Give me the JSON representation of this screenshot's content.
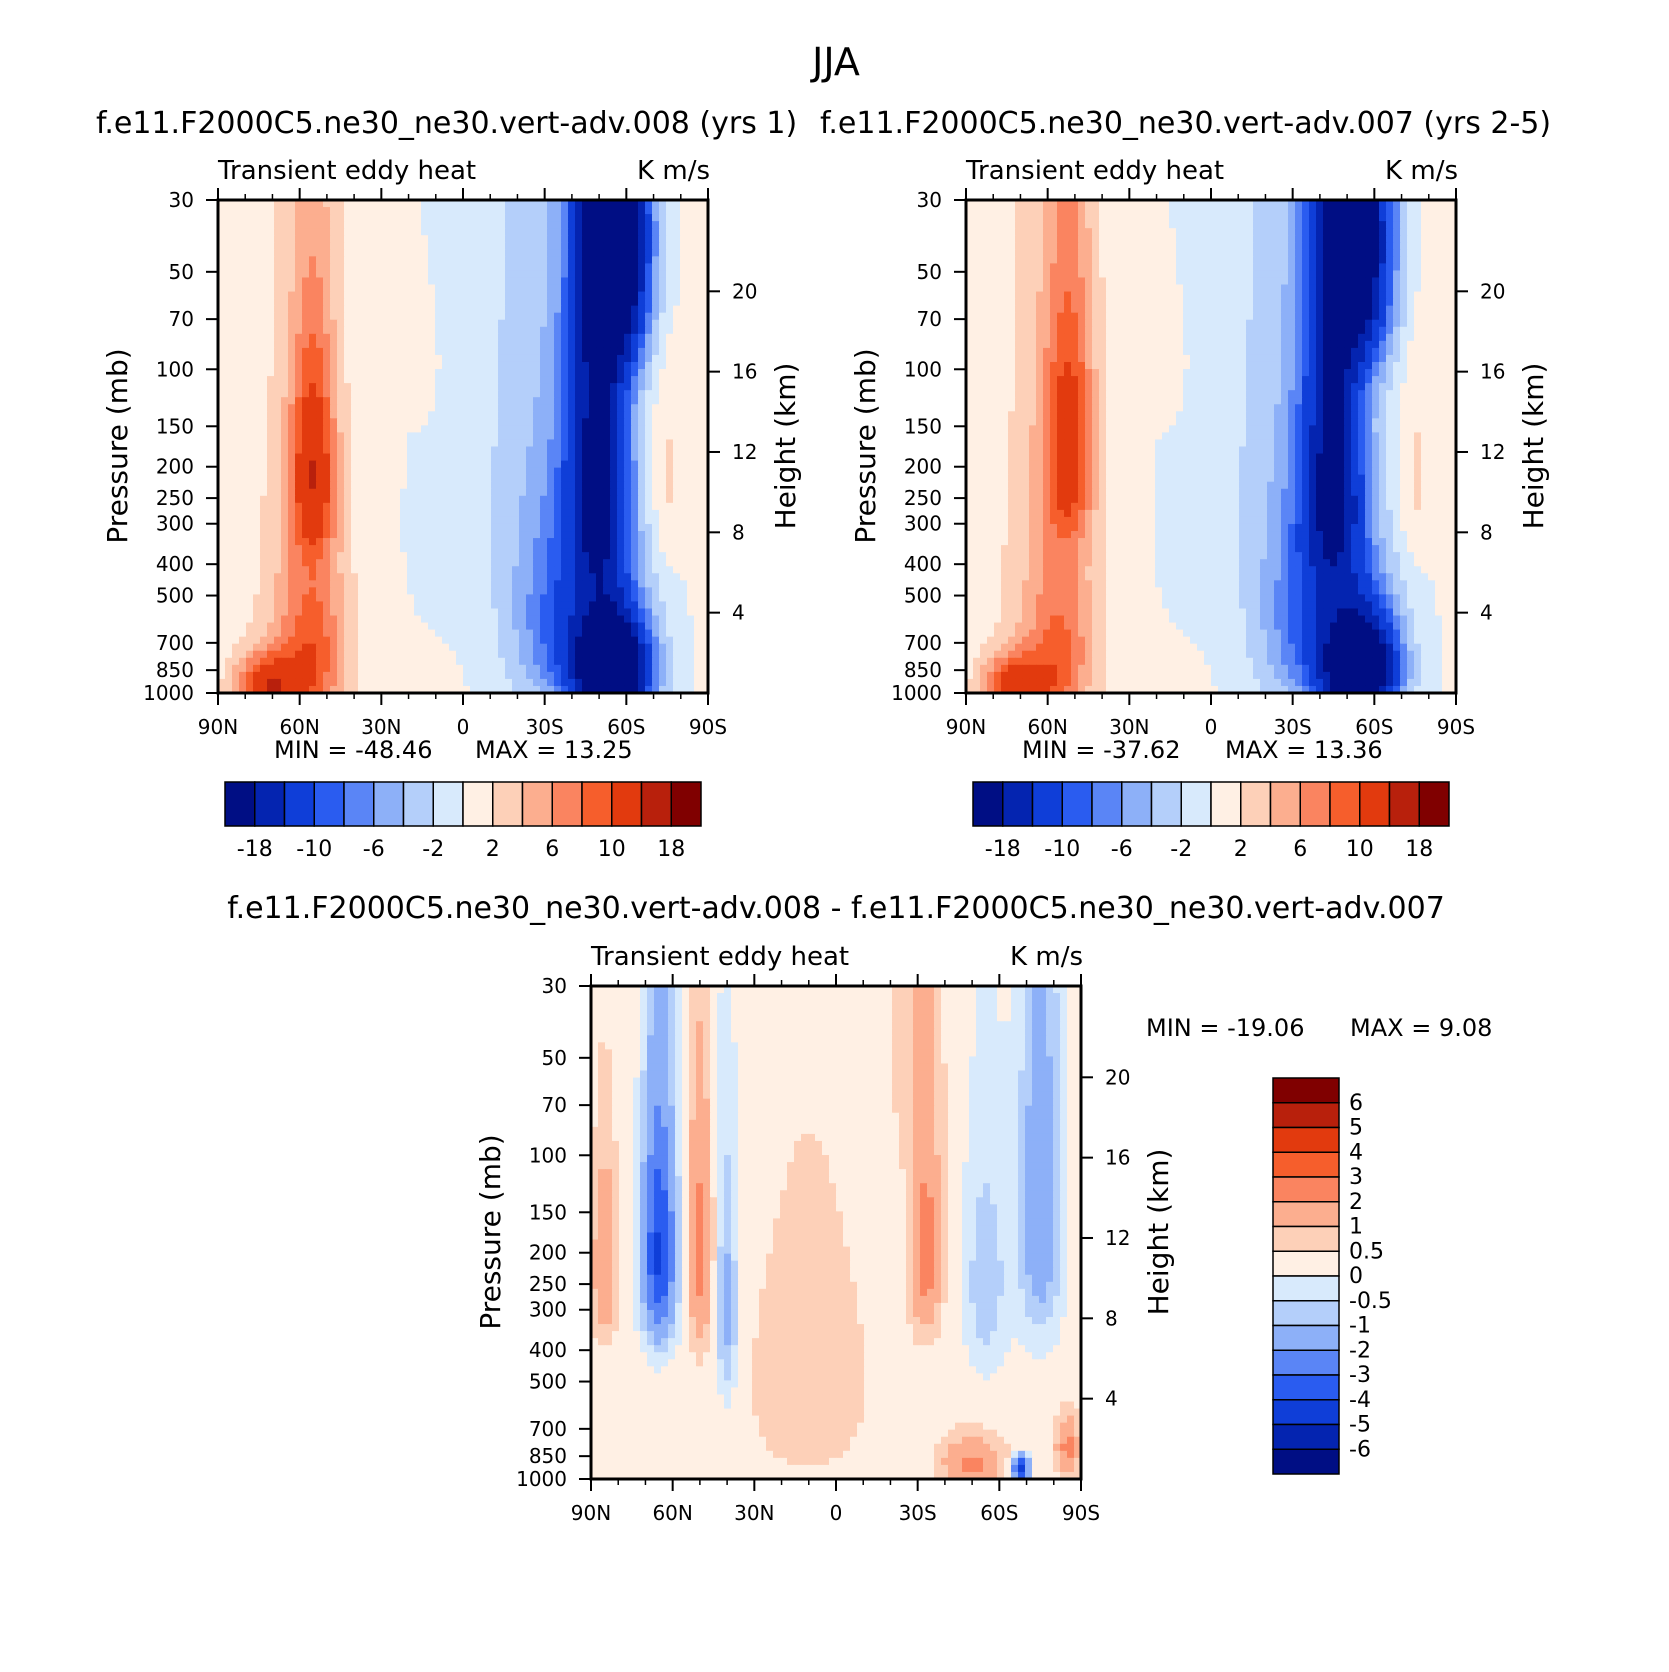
{
  "page_title": "JJA",
  "colors": {
    "pos": [
      "#fff0e4",
      "#fdd0b8",
      "#fcae8f",
      "#fa8460",
      "#f65e2c",
      "#e23a0e",
      "#b8200c",
      "#800000"
    ],
    "neg": [
      "#d8eafc",
      "#b4cffa",
      "#8db0f8",
      "#5a85f6",
      "#2a5cf0",
      "#0f3ed8",
      "#0424b0",
      "#000e84"
    ]
  },
  "chart_data": [
    {
      "type": "heatmap",
      "title": "f.e11.F2000C5.ne30_ne30.vert-adv.008 (yrs 1)",
      "left_title": "Transient eddy heat",
      "right_title": "K m/s",
      "ylabel": "Pressure (mb)",
      "ylabel_right": "Height (km)",
      "x_ticks": [
        "90N",
        "60N",
        "30N",
        "0",
        "30S",
        "60S",
        "90S"
      ],
      "y_ticks": [
        "30",
        "50",
        "70",
        "100",
        "150",
        "200",
        "250",
        "300",
        "400",
        "500",
        "700",
        "850",
        "1000"
      ],
      "y_right_ticks": [
        "4",
        "8",
        "12",
        "16",
        "20"
      ],
      "min_label": "MIN = -48.46",
      "max_label": "MAX = 13.25",
      "xlim": [
        90,
        -90
      ],
      "ylim_mb": [
        1000,
        30
      ],
      "min": -48.46,
      "max": 13.25,
      "levels": [
        -18,
        -14,
        -10,
        -8,
        -6,
        -4,
        -2,
        0,
        2,
        4,
        6,
        8,
        10,
        14,
        18
      ],
      "colorbar_ticks": [
        "-18",
        "-10",
        "-6",
        "-2",
        "2",
        "6",
        "10",
        "18"
      ],
      "features": [
        {
          "lat": 55,
          "p": 200,
          "dlat": 8,
          "dp": 150,
          "amp": 10
        },
        {
          "lat": 72,
          "p": 950,
          "dlat": 12,
          "dp": 200,
          "amp": 12
        },
        {
          "lat": 55,
          "p": 800,
          "dlat": 12,
          "dp": 500,
          "amp": 7
        },
        {
          "lat": 60,
          "p": 500,
          "dlat": 18,
          "dp": 600,
          "amp": 3
        },
        {
          "lat": 15,
          "p": 100,
          "dlat": 6,
          "dp": 40,
          "amp": 1.5
        },
        {
          "lat": -57,
          "p": 40,
          "dlat": 12,
          "dp": 50,
          "amp": -22
        },
        {
          "lat": -50,
          "p": 200,
          "dlat": 11,
          "dp": 250,
          "amp": -18
        },
        {
          "lat": -55,
          "p": 850,
          "dlat": 13,
          "dp": 300,
          "amp": -30
        },
        {
          "lat": -40,
          "p": 600,
          "dlat": 22,
          "dp": 500,
          "amp": -10
        },
        {
          "lat": -20,
          "p": 50,
          "dlat": 18,
          "dp": 400,
          "amp": -1.5
        },
        {
          "lat": 5,
          "p": 300,
          "dlat": 15,
          "dp": 300,
          "amp": -1.2
        },
        {
          "lat": -75,
          "p": 220,
          "dlat": 6,
          "dp": 150,
          "amp": 2.5
        }
      ]
    },
    {
      "type": "heatmap",
      "title": "f.e11.F2000C5.ne30_ne30.vert-adv.007 (yrs 2-5)",
      "left_title": "Transient eddy heat",
      "right_title": "K m/s",
      "ylabel": "Pressure (mb)",
      "ylabel_right": "Height (km)",
      "x_ticks": [
        "90N",
        "60N",
        "30N",
        "0",
        "30S",
        "60S",
        "90S"
      ],
      "y_ticks": [
        "30",
        "50",
        "70",
        "100",
        "150",
        "200",
        "250",
        "300",
        "400",
        "500",
        "700",
        "850",
        "1000"
      ],
      "y_right_ticks": [
        "4",
        "8",
        "12",
        "16",
        "20"
      ],
      "min_label": "MIN = -37.62",
      "max_label": "MAX = 13.36",
      "xlim": [
        90,
        -90
      ],
      "ylim_mb": [
        1000,
        30
      ],
      "min": -37.62,
      "max": 13.36,
      "levels": [
        -18,
        -14,
        -10,
        -8,
        -6,
        -4,
        -2,
        0,
        2,
        4,
        6,
        8,
        10,
        14,
        18
      ],
      "colorbar_ticks": [
        "-18",
        "-10",
        "-6",
        "-2",
        "2",
        "6",
        "10",
        "18"
      ],
      "features": [
        {
          "lat": 52,
          "p": 170,
          "dlat": 9,
          "dp": 150,
          "amp": 9
        },
        {
          "lat": 72,
          "p": 950,
          "dlat": 12,
          "dp": 200,
          "amp": 11
        },
        {
          "lat": 55,
          "p": 800,
          "dlat": 12,
          "dp": 500,
          "amp": 6
        },
        {
          "lat": 60,
          "p": 450,
          "dlat": 20,
          "dp": 700,
          "amp": 3
        },
        {
          "lat": 15,
          "p": 100,
          "dlat": 6,
          "dp": 40,
          "amp": 1.5
        },
        {
          "lat": -55,
          "p": 40,
          "dlat": 12,
          "dp": 50,
          "amp": -20
        },
        {
          "lat": -45,
          "p": 200,
          "dlat": 11,
          "dp": 250,
          "amp": -16
        },
        {
          "lat": -55,
          "p": 850,
          "dlat": 13,
          "dp": 300,
          "amp": -28
        },
        {
          "lat": -40,
          "p": 600,
          "dlat": 22,
          "dp": 500,
          "amp": -10
        },
        {
          "lat": -20,
          "p": 50,
          "dlat": 18,
          "dp": 400,
          "amp": -1.5
        },
        {
          "lat": 5,
          "p": 300,
          "dlat": 15,
          "dp": 300,
          "amp": -1.2
        },
        {
          "lat": -75,
          "p": 220,
          "dlat": 6,
          "dp": 150,
          "amp": 2.5
        }
      ]
    },
    {
      "type": "heatmap",
      "title": "f.e11.F2000C5.ne30_ne30.vert-adv.008 - f.e11.F2000C5.ne30_ne30.vert-adv.007",
      "left_title": "Transient eddy heat",
      "right_title": "K m/s",
      "ylabel": "Pressure (mb)",
      "ylabel_right": "Height (km)",
      "x_ticks": [
        "90N",
        "60N",
        "30N",
        "0",
        "30S",
        "60S",
        "90S"
      ],
      "y_ticks": [
        "30",
        "50",
        "70",
        "100",
        "150",
        "200",
        "250",
        "300",
        "400",
        "500",
        "700",
        "850",
        "1000"
      ],
      "y_right_ticks": [
        "4",
        "8",
        "12",
        "16",
        "20"
      ],
      "min_label": "MIN = -19.06",
      "max_label": "MAX = 9.08",
      "xlim": [
        90,
        -90
      ],
      "ylim_mb": [
        1000,
        30
      ],
      "min": -19.06,
      "max": 9.08,
      "levels": [
        -6,
        -5,
        -4,
        -3,
        -2,
        -1,
        -0.5,
        0,
        0.5,
        1,
        2,
        3,
        4,
        5,
        6
      ],
      "colorbar_ticks": [
        "6",
        "5",
        "4",
        "3",
        "2",
        "1",
        "0.5",
        "0",
        "-0.5",
        "-1",
        "-2",
        "-3",
        "-4",
        "-5",
        "-6"
      ],
      "features": [
        {
          "lat": 65,
          "p": 200,
          "dlat": 6,
          "dp": 160,
          "amp": -4.5
        },
        {
          "lat": 85,
          "p": 220,
          "dlat": 4,
          "dp": 120,
          "amp": 1.8
        },
        {
          "lat": 50,
          "p": 200,
          "dlat": 4,
          "dp": 150,
          "amp": 2.2
        },
        {
          "lat": 40,
          "p": 300,
          "dlat": 4,
          "dp": 250,
          "amp": -1.6
        },
        {
          "lat": -33,
          "p": 200,
          "dlat": 5,
          "dp": 120,
          "amp": 2.5
        },
        {
          "lat": -50,
          "p": 900,
          "dlat": 10,
          "dp": 150,
          "amp": 2.0
        },
        {
          "lat": -68,
          "p": 930,
          "dlat": 3,
          "dp": 80,
          "amp": -5
        },
        {
          "lat": -75,
          "p": 150,
          "dlat": 8,
          "dp": 200,
          "amp": -2
        },
        {
          "lat": -55,
          "p": 250,
          "dlat": 8,
          "dp": 200,
          "amp": -1.2
        },
        {
          "lat": -30,
          "p": 40,
          "dlat": 8,
          "dp": 60,
          "amp": 0.6
        },
        {
          "lat": 10,
          "p": 500,
          "dlat": 25,
          "dp": 500,
          "amp": 0.4
        },
        {
          "lat": -85,
          "p": 800,
          "dlat": 4,
          "dp": 150,
          "amp": 2
        }
      ]
    }
  ]
}
